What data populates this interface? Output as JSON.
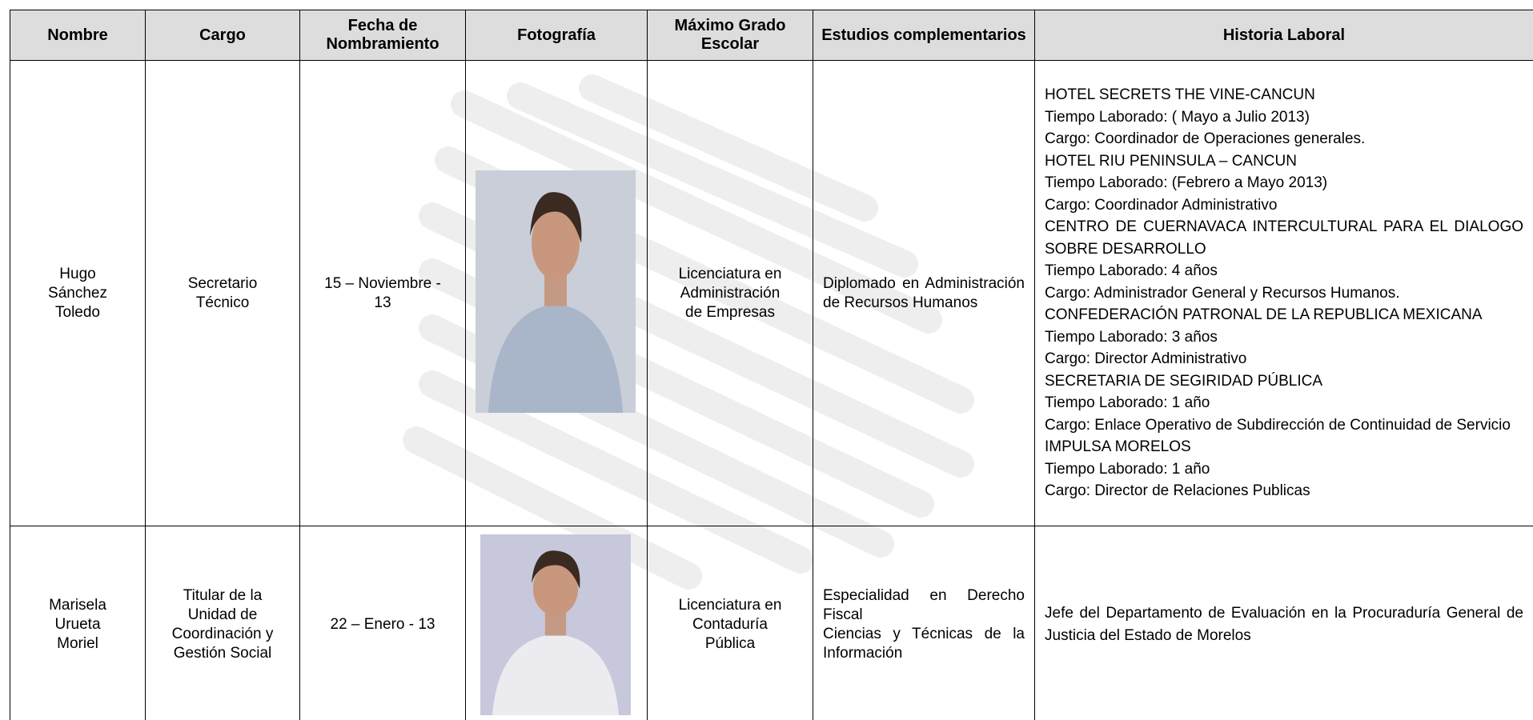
{
  "table": {
    "header": [
      "Nombre",
      "Cargo",
      "Fecha de Nombramiento",
      "Fotografía",
      "Máximo Grado Escolar",
      "Estudios complementarios",
      "Historia Laboral"
    ],
    "rows": [
      {
        "nombre": "Hugo Sánchez Toledo",
        "cargo": "Secretario Técnico",
        "fecha": "15 – Noviembre - 13",
        "grado": "Licenciatura en Administración de Empresas",
        "estudios": [
          "Diplomado en Administración de Recursos Humanos"
        ],
        "historia": [
          "HOTEL SECRETS THE VINE-CANCUN",
          "Tiempo Laborado: ( Mayo a Julio 2013)",
          "Cargo: Coordinador de Operaciones generales.",
          "HOTEL RIU PENINSULA – CANCUN",
          "Tiempo Laborado: (Febrero a Mayo 2013)",
          "Cargo: Coordinador Administrativo",
          "CENTRO DE CUERNAVACA INTERCULTURAL PARA EL DIALOGO SOBRE DESARROLLO",
          "Tiempo Laborado: 4 años",
          "Cargo: Administrador General y Recursos Humanos.",
          "CONFEDERACIÓN PATRONAL DE LA REPUBLICA MEXICANA",
          "Tiempo Laborado: 3 años",
          "Cargo: Director Administrativo",
          "SECRETARIA DE SEGIRIDAD PÚBLICA",
          "Tiempo Laborado: 1 año",
          "Cargo: Enlace Operativo de Subdirección de Continuidad de Servicio",
          "IMPULSA MORELOS",
          "Tiempo Laborado: 1 año",
          "Cargo: Director de Relaciones Publicas"
        ]
      },
      {
        "nombre": "Marisela Urueta Moriel",
        "cargo": "Titular de la Unidad de Coordinación y Gestión Social",
        "fecha": "22 – Enero - 13",
        "grado": "Licenciatura en Contaduría Pública",
        "estudios": [
          "Especialidad en Derecho Fiscal",
          "Ciencias y Técnicas de la Información"
        ],
        "historia": [
          "Jefe del Departamento de Evaluación en la Procuraduría General de Justicia del Estado de Morelos"
        ]
      }
    ]
  }
}
